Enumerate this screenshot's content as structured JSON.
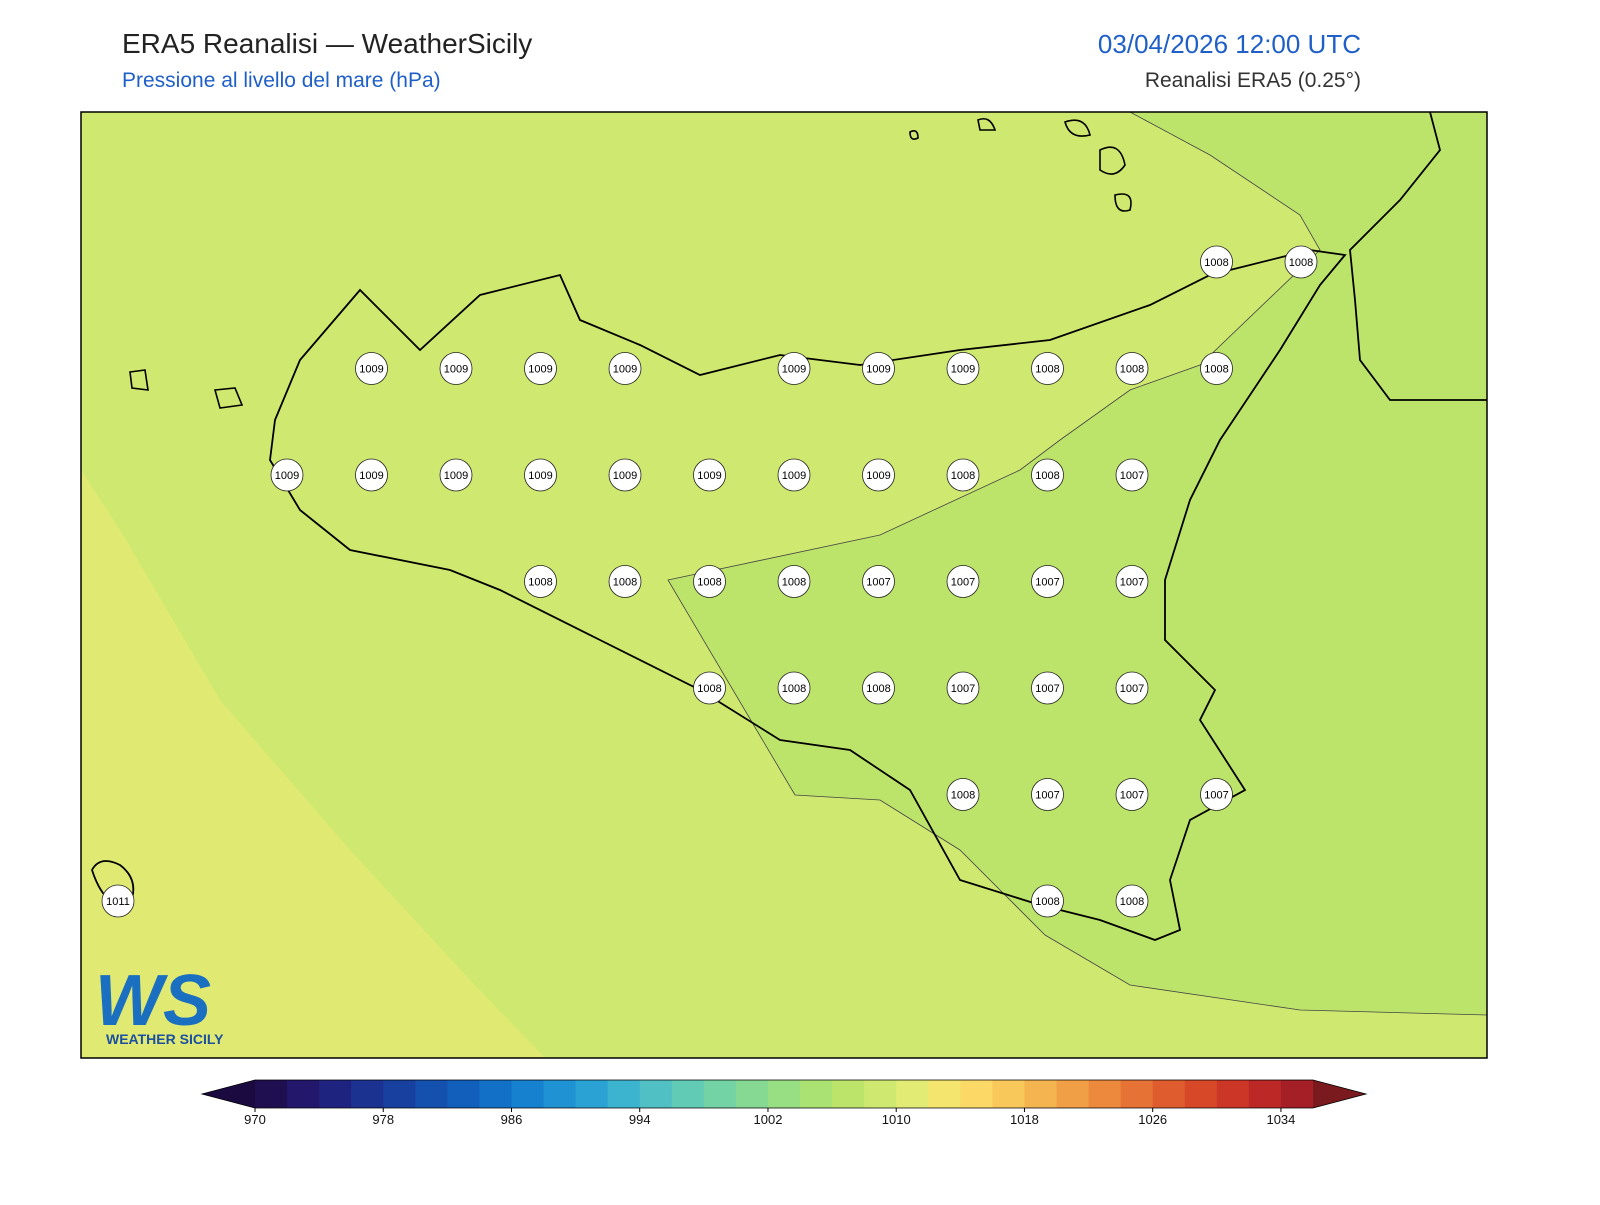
{
  "header": {
    "title": "ERA5 Reanalisi — WeatherSicily",
    "subtitle": "Pressione al livello del mare (hPa)",
    "datetime": "03/04/2026 12:00 UTC",
    "source": "Reanalisi ERA5 (0.25°)"
  },
  "stations": [
    1008,
    1008,
    1009,
    1009,
    1009,
    1009,
    1009,
    1009,
    1009,
    1008,
    1008,
    1008,
    1009,
    1009,
    1009,
    1009,
    1009,
    1009,
    1009,
    1009,
    1008,
    1008,
    1007,
    1008,
    1008,
    1008,
    1008,
    1007,
    1007,
    1007,
    1007,
    1008,
    1008,
    1008,
    1007,
    1007,
    1007,
    1008,
    1007,
    1007,
    1007,
    1008,
    1008,
    1011
  ],
  "colorbar": {
    "lim": [
      970,
      1036
    ],
    "ticks": [
      970,
      978,
      986,
      994,
      1002,
      1010,
      1018,
      1026,
      1034
    ],
    "colors": [
      "#1f0f50",
      "#22176a",
      "#1f2380",
      "#1b3291",
      "#17409f",
      "#1450ad",
      "#125fbb",
      "#1270c7",
      "#1581cf",
      "#1f92d4",
      "#2aa3d4",
      "#3cb3cf",
      "#50c0c4",
      "#62cbb6",
      "#74d3a5",
      "#86d993",
      "#98de83",
      "#aae274",
      "#bce46b",
      "#cfe870",
      "#e2ec74",
      "#f4e56e",
      "#fcd966",
      "#f9c85b",
      "#f4b450",
      "#f09f46",
      "#ec893d",
      "#e67235",
      "#df5c2e",
      "#d74829",
      "#cb3626",
      "#bb2826",
      "#a41f26"
    ],
    "under_color": "#1a0a3f",
    "over_color": "#7a1a1e"
  },
  "logo": {
    "mark": "WS",
    "text": "WEATHER SICILY"
  }
}
